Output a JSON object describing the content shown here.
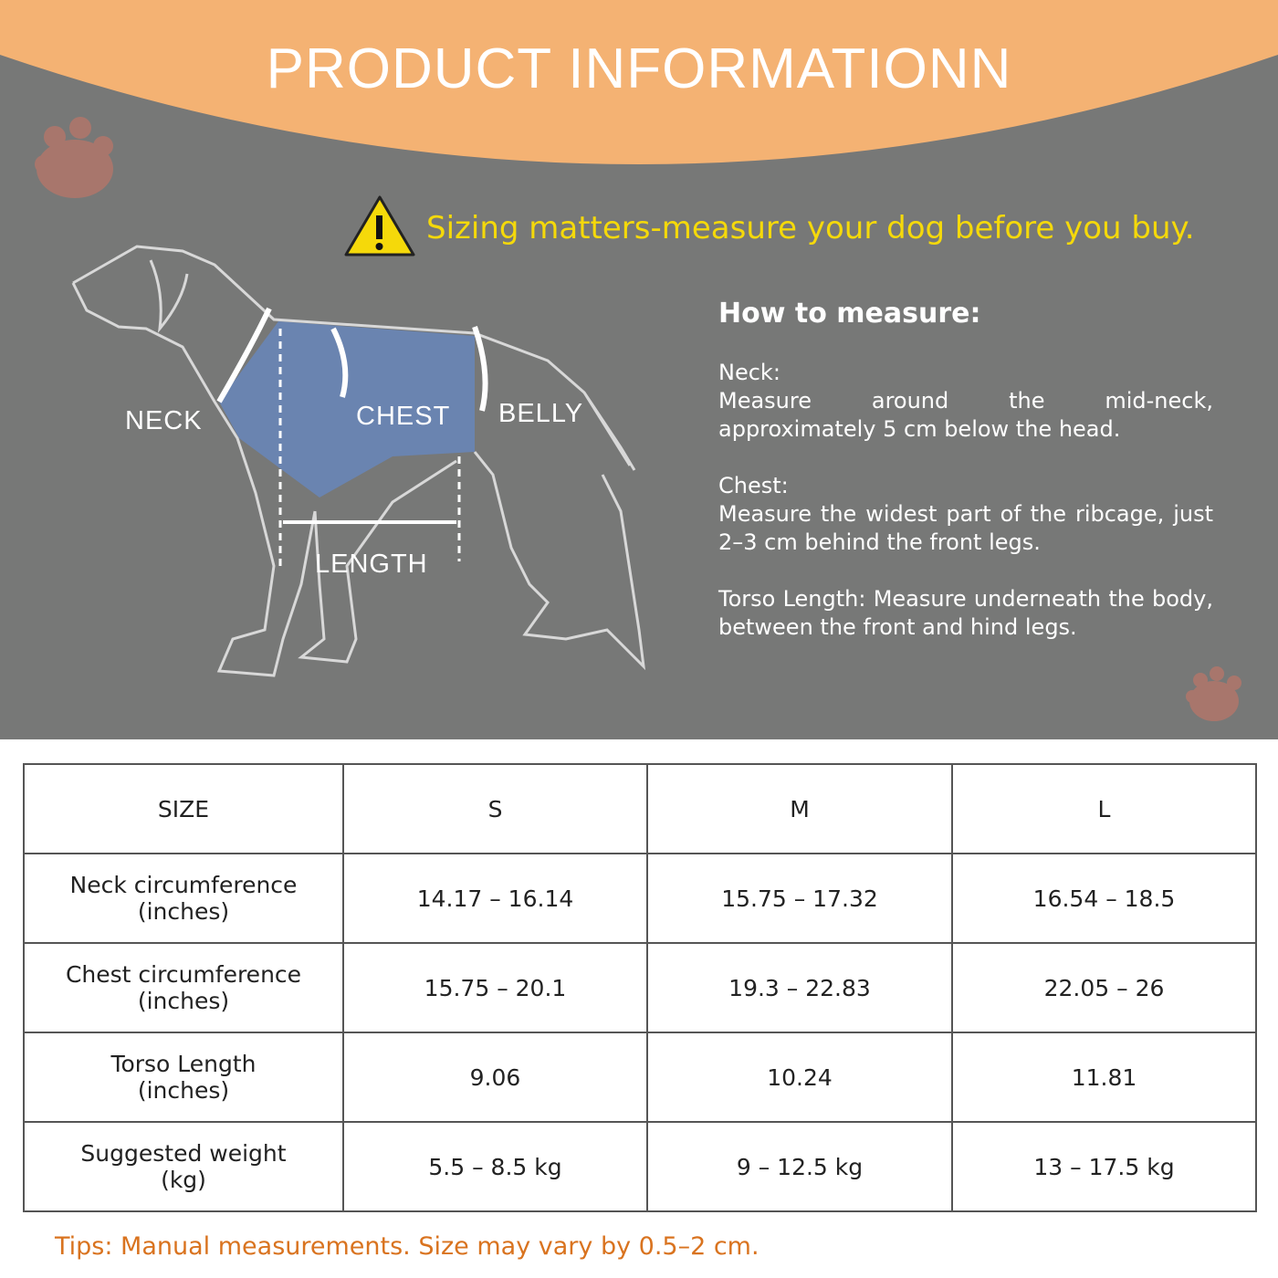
{
  "header": {
    "title": "PRODUCT INFORMATIONN"
  },
  "warning": "Sizing matters-measure your dog before you buy.",
  "diagram": {
    "labels": [
      "NECK",
      "CHEST",
      "BELLY",
      "LENGTH"
    ]
  },
  "how_to": {
    "title": "How to measure:",
    "items": [
      {
        "label": "Neck:",
        "text": "Measure around the mid-neck, approximately 5 cm below the head."
      },
      {
        "label": "Chest:",
        "text": "Measure the widest part of the ribcage, just 2–3 cm behind the front legs."
      },
      {
        "label": "Torso Length:",
        "text": "Measure underneath the body, between the front and hind legs."
      }
    ]
  },
  "table": {
    "header": [
      "SIZE",
      "S",
      "M",
      "L"
    ],
    "rows": [
      {
        "label": "Neck circumference",
        "unit": "(inches)",
        "cells": [
          "14.17 – 16.14",
          "15.75 – 17.32",
          "16.54 – 18.5"
        ]
      },
      {
        "label": "Chest circumference",
        "unit": "(inches)",
        "cells": [
          "15.75 – 20.1",
          "19.3 – 22.83",
          "22.05 – 26"
        ]
      },
      {
        "label": "Torso Length",
        "unit": "(inches)",
        "cells": [
          "9.06",
          "10.24",
          "11.81"
        ]
      },
      {
        "label": "Suggested weight",
        "unit": "(kg)",
        "cells": [
          "5.5 – 8.5 kg",
          "9 – 12.5 kg",
          "13 – 17.5 kg"
        ]
      }
    ]
  },
  "tips": "Tips: Manual measurements. Size may vary by 0.5–2 cm."
}
